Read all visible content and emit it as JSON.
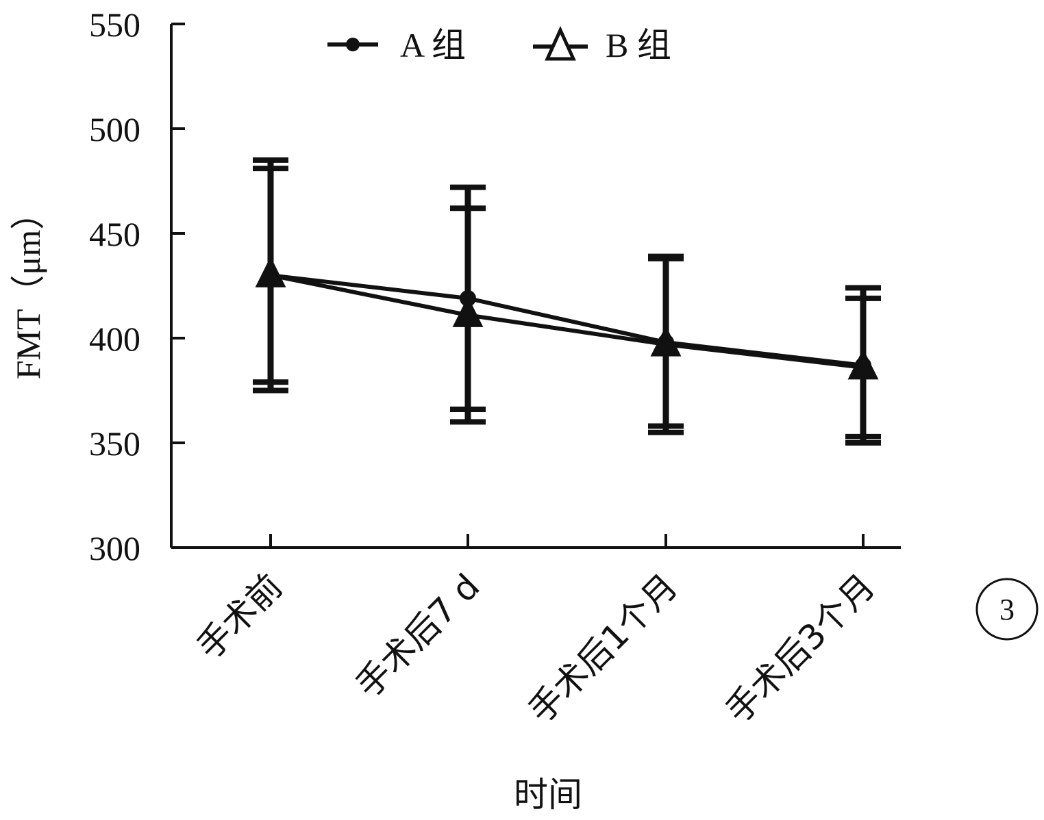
{
  "chart_data": {
    "type": "line",
    "xlabel": "时间",
    "ylabel": "FMT（μm）",
    "ylim": [
      300,
      550
    ],
    "yticks": [
      300,
      350,
      400,
      450,
      500,
      550
    ],
    "categories": [
      "手术前",
      "手术后7 d",
      "手术后1个月",
      "手术后3个月"
    ],
    "legend_position": "top",
    "grid": false,
    "error_bars": true,
    "series": [
      {
        "name": "A 组",
        "marker": "circle",
        "values": [
          430,
          419,
          398,
          387
        ],
        "error": [
          55,
          53,
          40,
          37
        ]
      },
      {
        "name": "B 组",
        "marker": "triangle",
        "values": [
          430,
          411,
          397,
          386
        ],
        "error": [
          51,
          51,
          42,
          33
        ]
      }
    ],
    "panel_label": "3",
    "color": "#111111"
  }
}
